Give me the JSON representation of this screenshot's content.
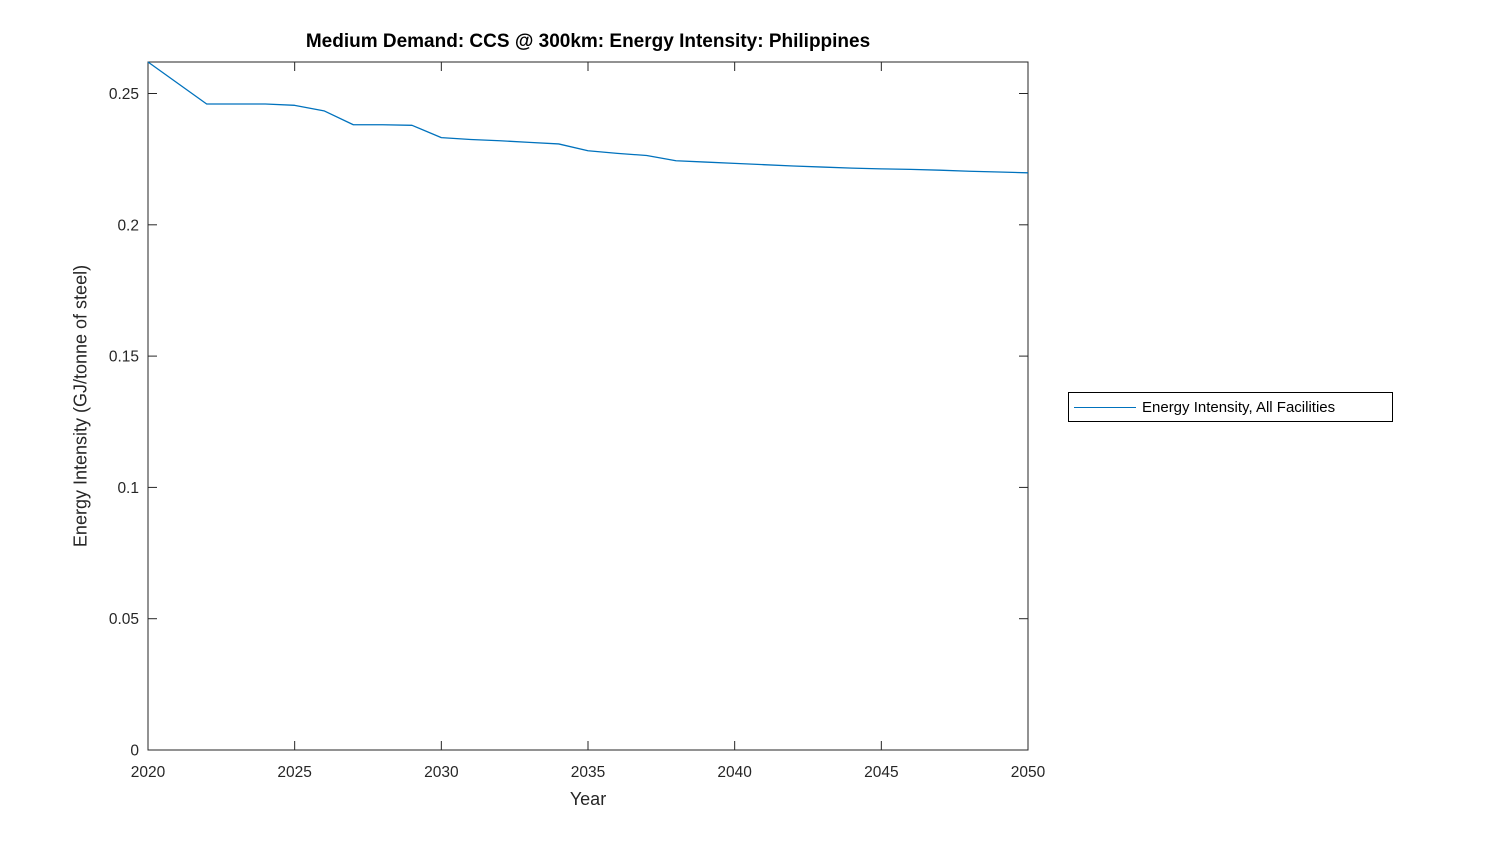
{
  "colors": {
    "line": "#0072BD",
    "axis": "#262626",
    "tick_label": "#262626",
    "title": "#000000",
    "background": "#ffffff"
  },
  "chart_data": {
    "type": "line",
    "title": "Medium Demand: CCS @ 300km: Energy Intensity: Philippines",
    "xlabel": "Year",
    "ylabel": "Energy Intensity (GJ/tonne of steel)",
    "xlim": [
      2020,
      2050
    ],
    "ylim": [
      0,
      0.262
    ],
    "xticks": [
      2020,
      2025,
      2030,
      2035,
      2040,
      2045,
      2050
    ],
    "xtick_labels": [
      "2020",
      "2025",
      "2030",
      "2035",
      "2040",
      "2045",
      "2050"
    ],
    "yticks": [
      0,
      0.05,
      0.1,
      0.15,
      0.2,
      0.25
    ],
    "ytick_labels": [
      "0",
      "0.05",
      "0.1",
      "0.15",
      "0.2",
      "0.25"
    ],
    "grid": false,
    "box": true,
    "legend_position": "outside-right",
    "series": [
      {
        "name": "Energy Intensity, All Facilities",
        "color": "#0072BD",
        "x": [
          2020,
          2021,
          2022,
          2023,
          2024,
          2025,
          2026,
          2027,
          2028,
          2029,
          2030,
          2031,
          2032,
          2033,
          2034,
          2035,
          2036,
          2037,
          2038,
          2039,
          2040,
          2041,
          2042,
          2043,
          2044,
          2045,
          2046,
          2047,
          2048,
          2049,
          2050
        ],
        "y": [
          0.262,
          0.254,
          0.246,
          0.246,
          0.246,
          0.2455,
          0.2434,
          0.2381,
          0.2381,
          0.2379,
          0.2332,
          0.2325,
          0.232,
          0.2314,
          0.2308,
          0.2282,
          0.2272,
          0.2264,
          0.2244,
          0.2239,
          0.2234,
          0.2229,
          0.2224,
          0.222,
          0.2216,
          0.2213,
          0.2211,
          0.2208,
          0.2204,
          0.2201,
          0.2198
        ]
      }
    ]
  }
}
